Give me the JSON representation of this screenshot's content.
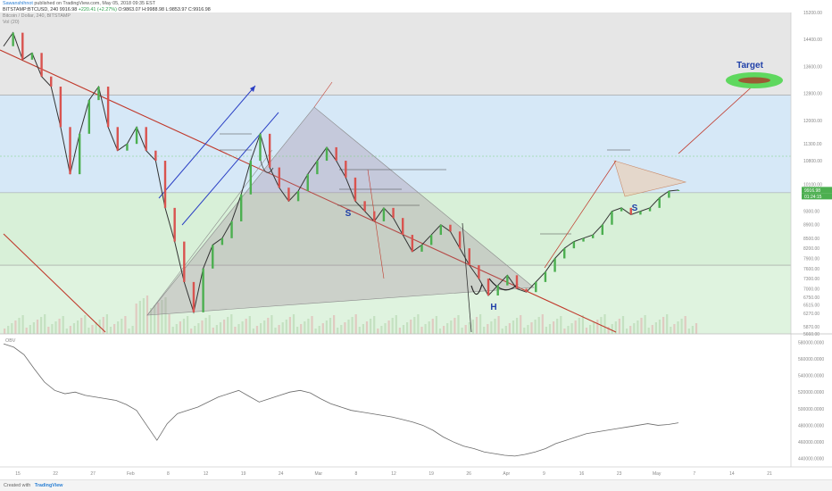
{
  "header": {
    "author": "Sawanshihnot",
    "published_text": "published on TradingView.com, May 05, 2018 09:35 EST",
    "symbol_line": "BITSTAMP:BTCUSD, 240",
    "last": "9916.98",
    "change": "+220.41 (+2.27%)",
    "ohlc": "O:9863.07 H:9988.98 L:9853.97 C:9916.98",
    "chart_title": "Bitcoin / Dollar, 240, BITSTAMP",
    "volume_label": "Vol (20)"
  },
  "footer": {
    "created_with": "Created with",
    "brand": "TradingView"
  },
  "chart_data": [
    {
      "type": "line",
      "name": "price",
      "x_ticks": [
        "15",
        "22",
        "27",
        "Feb",
        "8",
        "12",
        "19",
        "24",
        "Mar",
        "8",
        "12",
        "19",
        "26",
        "Apr",
        "9",
        "16",
        "23",
        "May",
        "7",
        "14",
        "21"
      ],
      "y_ticks": [
        15200.0,
        14400.0,
        13600.0,
        12800.0,
        12000.0,
        11300.0,
        10800.0,
        10100.0,
        9300.0,
        8900.0,
        8500.0,
        8200.0,
        7900.0,
        7600.0,
        7300.0,
        7000.0,
        6750.0,
        6515.0,
        6270.0,
        5870.0,
        5660.0
      ],
      "ylim": [
        5660,
        15200
      ],
      "price_labels": {
        "last_price": "9916.98",
        "timer": "01:24:15"
      },
      "series": [
        {
          "values": [
            14200,
            14600,
            13800,
            14000,
            13300,
            13000,
            11800,
            10400,
            11600,
            12600,
            13000,
            11800,
            11100,
            11300,
            11800,
            11100,
            10800,
            9400,
            8400,
            7200,
            6300,
            7600,
            8300,
            8500,
            9000,
            9800,
            10800,
            11600,
            10600,
            10000,
            9600,
            9900,
            10400,
            10800,
            11200,
            10800,
            10300,
            9600,
            9300,
            9000,
            9400,
            9100,
            8600,
            8100,
            8300,
            8600,
            8900,
            8700,
            8200,
            7700,
            7300,
            6800,
            7100,
            7400,
            7000,
            6900,
            7200,
            7500,
            7900,
            8200,
            8400,
            8500,
            8600,
            8900,
            9300,
            9400,
            9200,
            9300,
            9400,
            9700,
            9900,
            9930
          ]
        }
      ],
      "zones": [
        {
          "from": 12750,
          "to": 15200,
          "color": "#e6e6e6"
        },
        {
          "from": 9850,
          "to": 12750,
          "color": "#d6e8f7"
        },
        {
          "from": 7700,
          "to": 9850,
          "color": "#d8f0d8"
        },
        {
          "from": 5660,
          "to": 7700,
          "color": "#dff3df"
        }
      ],
      "annotations": [
        {
          "text": "S",
          "color": "#1f3fa8"
        },
        {
          "text": "H",
          "color": "#1f3fa8"
        },
        {
          "text": "S",
          "color": "#1f3fa8"
        },
        {
          "text": "Target",
          "color": "#1f3fa8"
        }
      ]
    },
    {
      "type": "line",
      "name": "obv",
      "label": "OBV",
      "y_ticks": [
        580000.0,
        560000.0,
        540000.0,
        520000.0,
        500000.0,
        480000.0,
        460000.0,
        440000.0
      ],
      "ylim": [
        430000,
        590000
      ],
      "series": [
        {
          "values": [
            578000,
            574000,
            565000,
            548000,
            532000,
            522000,
            518000,
            520000,
            516000,
            514000,
            512000,
            510000,
            505000,
            498000,
            480000,
            462000,
            482000,
            494000,
            498000,
            502000,
            508000,
            514000,
            518000,
            522000,
            515000,
            508000,
            512000,
            516000,
            520000,
            522000,
            519000,
            512000,
            506000,
            502000,
            498000,
            496000,
            494000,
            492000,
            490000,
            487000,
            484000,
            480000,
            474000,
            466000,
            460000,
            455000,
            452000,
            448000,
            446000,
            444000,
            443000,
            445000,
            448000,
            452000,
            458000,
            462000,
            466000,
            470000,
            472000,
            474000,
            476000,
            478000,
            480000,
            482000,
            480000,
            481000,
            483000
          ]
        }
      ]
    }
  ]
}
